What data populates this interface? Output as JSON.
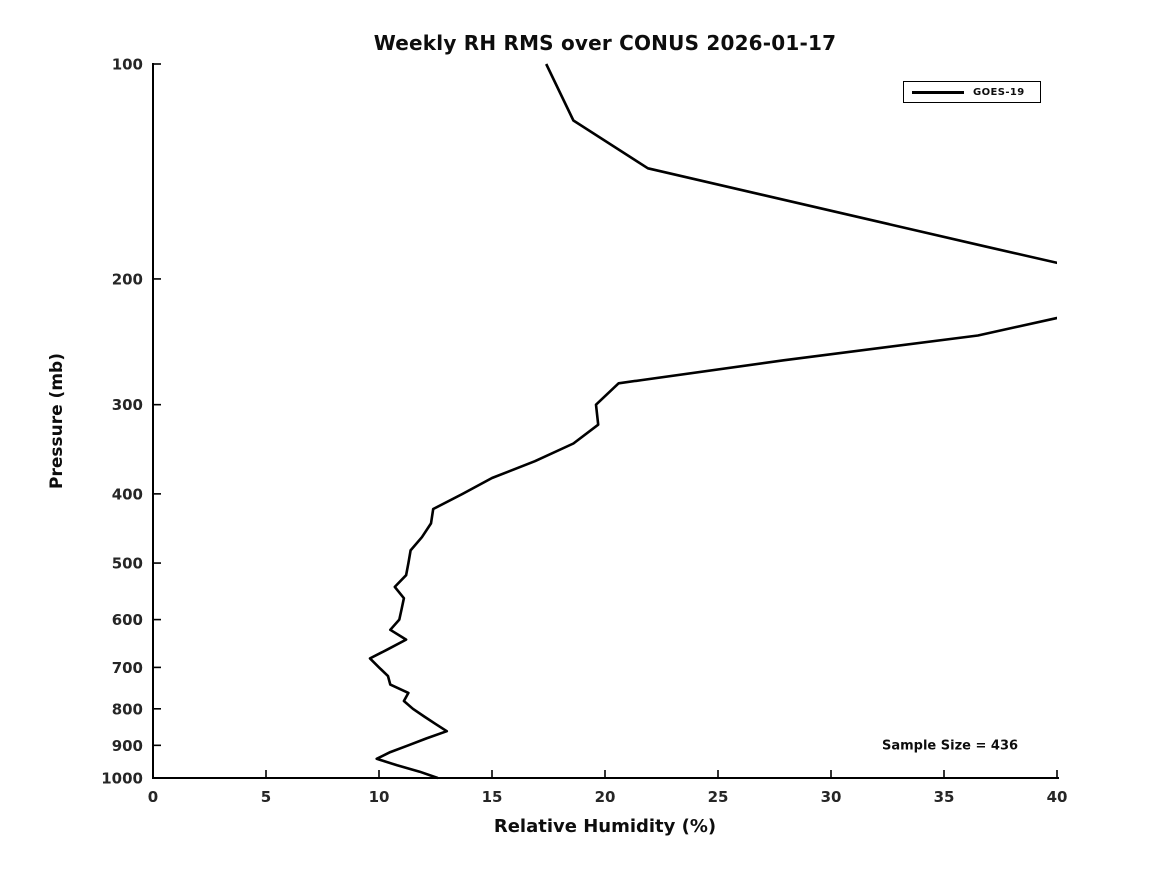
{
  "figure": {
    "title": "Weekly RH RMS over CONUS 2026-01-17",
    "background_color": "#ffffff",
    "line_color": "#000000",
    "axis_color": "#000000"
  },
  "legend": {
    "label": "GOES-19",
    "position": "upper right"
  },
  "annotation": {
    "sample_size_text": "Sample Size = 436"
  },
  "chart_data": {
    "type": "line",
    "title": "Weekly RH RMS over CONUS 2026-01-17",
    "xlabel": "Relative Humidity (%)",
    "ylabel": "Pressure (mb)",
    "xlim": [
      0,
      40
    ],
    "ylim": [
      100,
      1000
    ],
    "y_scale": "log",
    "y_inverted": true,
    "grid": false,
    "x_ticks": [
      0,
      5,
      10,
      15,
      20,
      25,
      30,
      35,
      40
    ],
    "y_ticks": [
      100,
      200,
      300,
      400,
      500,
      600,
      700,
      800,
      900,
      1000
    ],
    "legend_position": "upper right",
    "sample_size": 436,
    "series": [
      {
        "name": "GOES-19",
        "color": "#000000",
        "pressure_mb": [
          100,
          120,
          140,
          160,
          180,
          200,
          220,
          240,
          260,
          280,
          300,
          320,
          340,
          360,
          380,
          400,
          420,
          440,
          460,
          480,
          500,
          520,
          540,
          560,
          580,
          600,
          620,
          640,
          660,
          680,
          700,
          720,
          740,
          760,
          780,
          800,
          820,
          840,
          860,
          880,
          900,
          920,
          940,
          960,
          980,
          1000
        ],
        "rh_rms_percent": [
          17.4,
          18.6,
          21.9,
          29.8,
          36.8,
          43.1,
          41.9,
          36.5,
          27.9,
          20.6,
          19.6,
          19.7,
          18.6,
          16.9,
          15.0,
          13.7,
          12.4,
          12.3,
          11.9,
          11.4,
          11.3,
          11.2,
          10.7,
          11.1,
          11.0,
          10.9,
          10.5,
          11.2,
          10.4,
          9.6,
          10.0,
          10.4,
          10.5,
          11.3,
          11.1,
          11.5,
          12.0,
          12.5,
          13.0,
          12.1,
          11.3,
          10.5,
          9.9,
          10.8,
          11.8,
          12.6
        ]
      }
    ]
  }
}
